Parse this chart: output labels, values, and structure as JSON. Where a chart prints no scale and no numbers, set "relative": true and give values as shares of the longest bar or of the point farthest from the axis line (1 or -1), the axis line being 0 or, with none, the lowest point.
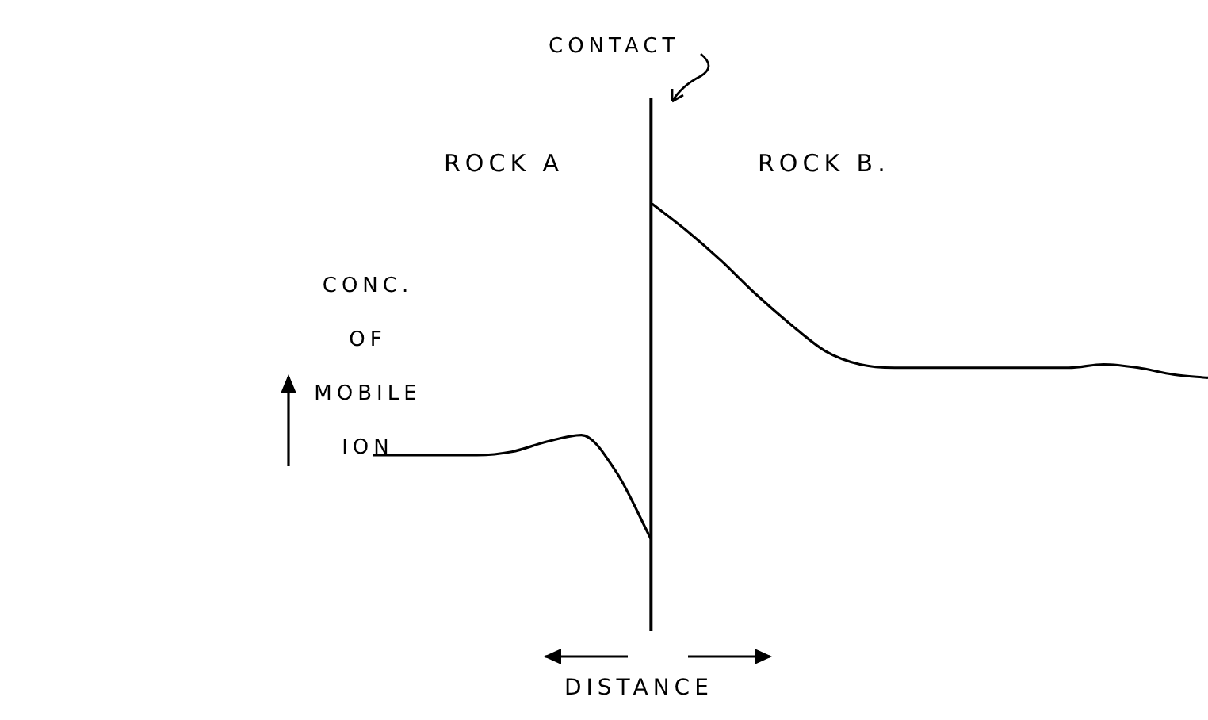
{
  "chart_data": {
    "type": "line",
    "relative": true,
    "ylabel": "CONC. OF MOBILE ION",
    "categories": [
      null,
      null,
      null,
      null,
      null,
      null,
      null,
      null,
      null,
      null,
      null,
      null,
      null,
      null,
      null,
      null,
      null,
      null,
      null,
      null,
      null,
      null,
      null,
      null,
      null
    ],
    "series": [
      {
        "color": "#000000",
        "values": [
          0.25,
          0.25,
          0.25,
          0.25,
          0.26,
          0.29,
          0.31,
          0.2,
          0,
          null,
          null,
          null,
          null,
          null,
          null,
          null,
          null,
          null,
          null,
          null,
          null,
          null,
          null,
          null,
          null
        ]
      },
      {
        "color": "#000000",
        "values": [
          null,
          null,
          null,
          null,
          null,
          null,
          null,
          null,
          1,
          0.92,
          0.83,
          0.73,
          0.64,
          0.56,
          0.52,
          0.51,
          0.51,
          0.51,
          0.51,
          0.51,
          0.51,
          0.52,
          0.51,
          0.49,
          0.48
        ]
      }
    ],
    "ref_lines": [
      {
        "axis": "x",
        "label": "CONTACT",
        "color": "#000000"
      }
    ],
    "annotations": [
      "ROCK A",
      "ROCK B.",
      "DISTANCE"
    ],
    "legend": false
  }
}
